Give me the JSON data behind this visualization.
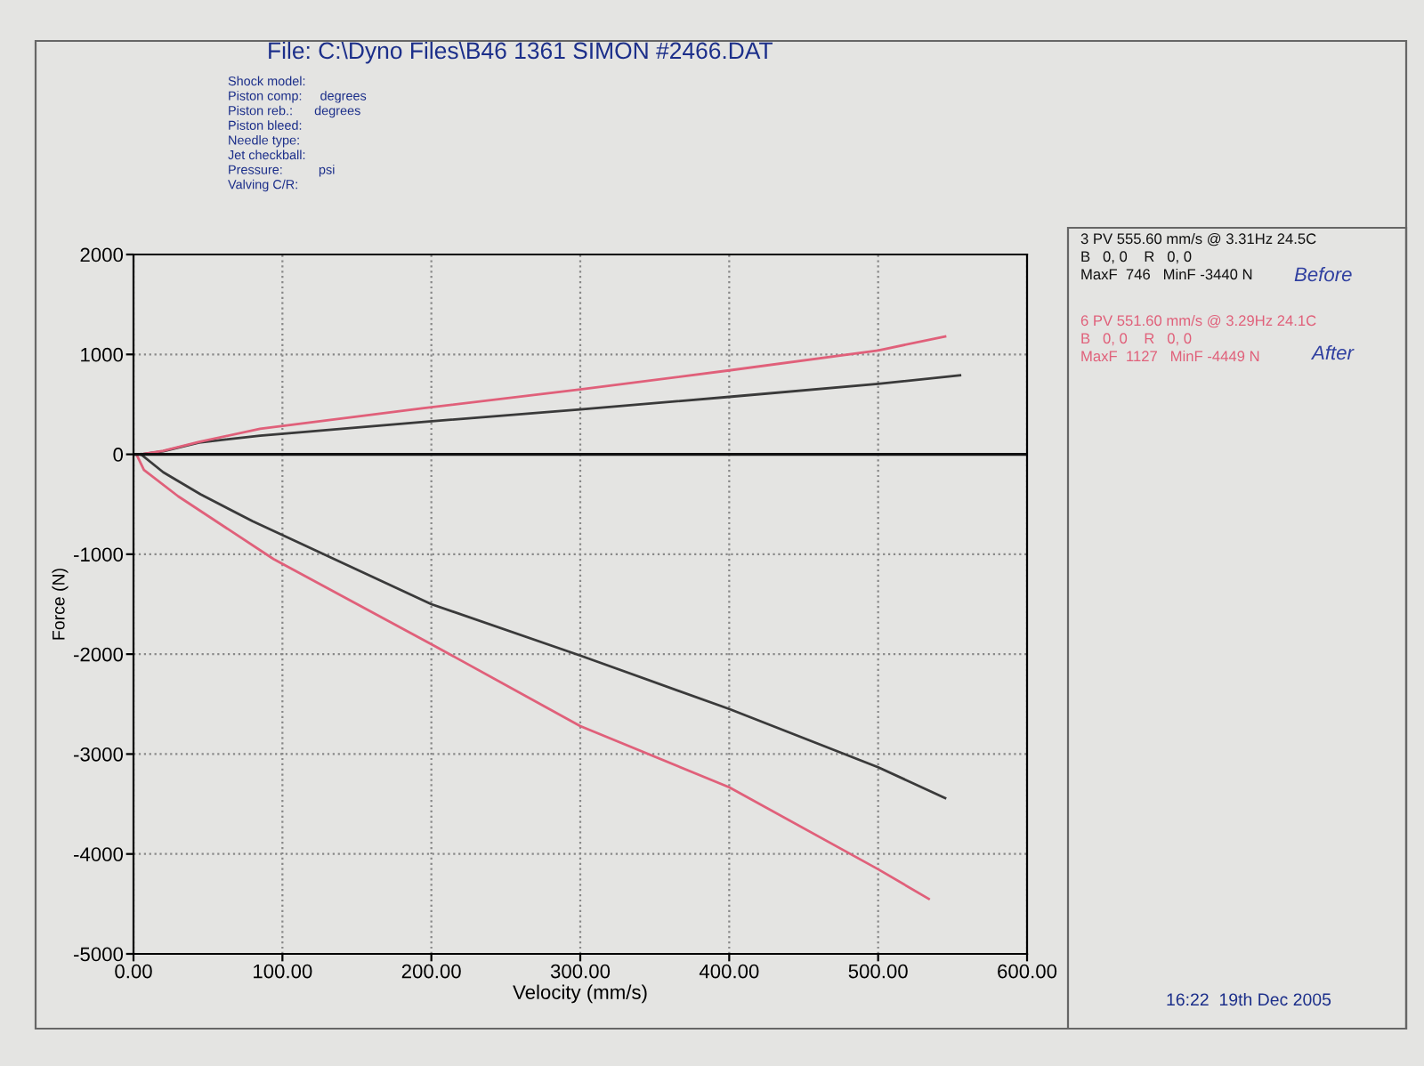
{
  "chart_data": {
    "type": "line",
    "xlabel": "Velocity (mm/s)",
    "ylabel": "Force (N)",
    "xlim": [
      0,
      600
    ],
    "ylim": [
      -5000,
      2000
    ],
    "xticks": [
      {
        "value": 0,
        "label": "0.00"
      },
      {
        "value": 100,
        "label": "100.00"
      },
      {
        "value": 200,
        "label": "200.00"
      },
      {
        "value": 300,
        "label": "300.00"
      },
      {
        "value": 400,
        "label": "400.00"
      },
      {
        "value": 500,
        "label": "500.00"
      },
      {
        "value": 600,
        "label": "600.00"
      }
    ],
    "yticks": [
      2000,
      1000,
      0,
      -1000,
      -2000,
      -3000,
      -4000,
      -5000
    ],
    "grid": true,
    "line_style": "solid",
    "ref_lines": [
      {
        "axis": "y",
        "value": 0,
        "color": "#111111"
      }
    ],
    "series": [
      {
        "color": "#3a3a3a",
        "x": [
          5,
          20,
          44,
          85,
          195,
          300,
          400,
          500,
          555
        ],
        "values": [
          0,
          30,
          118,
          187,
          324,
          450,
          575,
          705,
          790
        ]
      },
      {
        "color": "#e0607a",
        "x": [
          5,
          20,
          44,
          85,
          195,
          300,
          400,
          500,
          545
        ],
        "values": [
          0,
          35,
          125,
          255,
          463,
          650,
          840,
          1040,
          1180
        ]
      },
      {
        "color": "#3a3a3a",
        "x": [
          5,
          20,
          45,
          80,
          200,
          300,
          400,
          500,
          545
        ],
        "values": [
          0,
          -180,
          -400,
          -670,
          -1500,
          -2014,
          -2549,
          -3132,
          -3440
        ]
      },
      {
        "color": "#e0607a",
        "x": [
          2,
          7,
          30,
          94,
          200,
          300,
          400,
          500,
          534
        ],
        "values": [
          0,
          -157,
          -420,
          -1048,
          -1900,
          -2720,
          -3333,
          -4153,
          -4449
        ]
      }
    ],
    "annotations": [
      "File: C:\\Dyno Files\\B46 1361 SIMON #2466.DAT",
      "Shock model:",
      "Piston comp:     degrees",
      "Piston reb.:      degrees",
      "Piston bleed:",
      "Needle type:",
      "Jet checkball:",
      "Pressure:          psi",
      "Valving C/R:",
      "3 PV 555.60 mm/s @ 3.31Hz 24.5C",
      "B   0, 0    R   0, 0",
      "MaxF  746   MinF -3440 N",
      "Before",
      "6 PV 551.60 mm/s @ 3.29Hz 24.1C",
      "B   0, 0    R   0, 0",
      "MaxF  1127   MinF -4449 N",
      "After",
      "16:22  19th Dec 2005"
    ]
  }
}
